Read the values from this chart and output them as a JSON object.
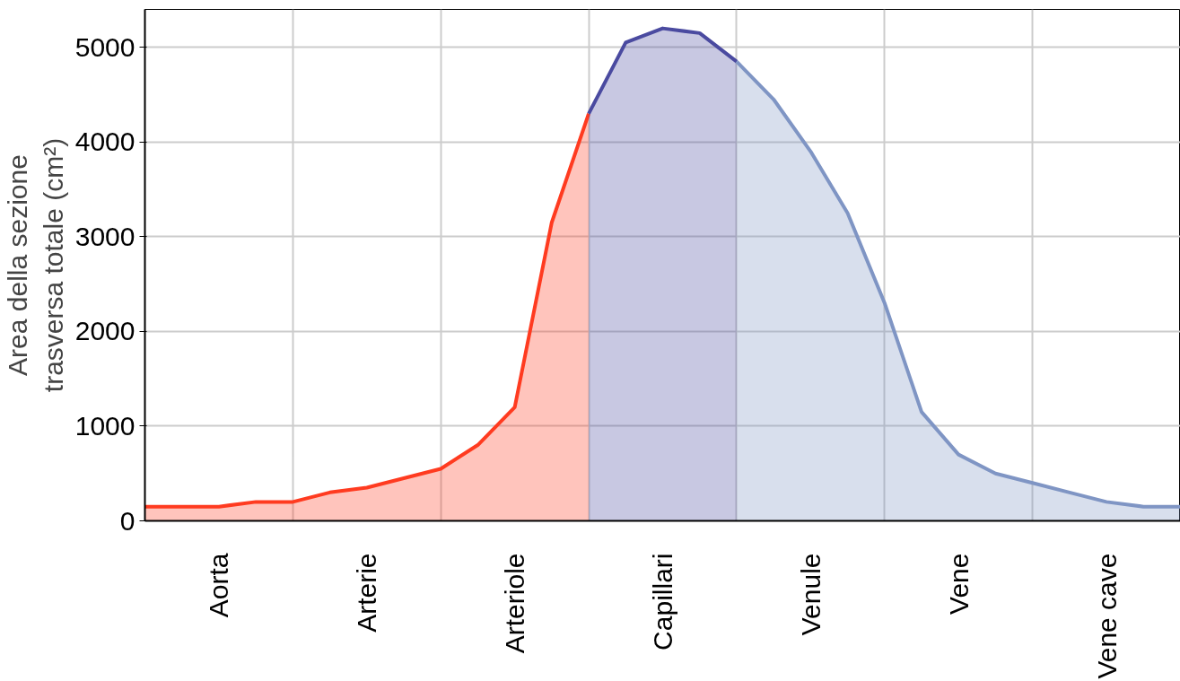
{
  "chart_data": {
    "type": "area",
    "ylabel": "Area della sezione\ntrasversa totale (cm²)",
    "categories": [
      null,
      null,
      "Aorta",
      null,
      null,
      null,
      "Arterie",
      null,
      null,
      null,
      "Arteriole",
      null,
      null,
      null,
      "Capillari",
      null,
      null,
      null,
      "Venule",
      null,
      null,
      null,
      "Vene",
      null,
      null,
      null,
      "Vene cave",
      null,
      null
    ],
    "ylim": [
      0,
      5400
    ],
    "yticks": [
      0,
      1000,
      2000,
      3000,
      4000,
      5000
    ],
    "grid": true,
    "series": [
      {
        "color": "#ff3b20",
        "values": [
          150,
          150,
          150,
          200,
          200,
          300,
          350,
          450,
          550,
          800,
          1200,
          3150,
          4300,
          null,
          null,
          null,
          null,
          null,
          null,
          null,
          null,
          null,
          null,
          null,
          null,
          null,
          null,
          null,
          null
        ]
      },
      {
        "color": "#4a4aa0",
        "values": [
          null,
          null,
          null,
          null,
          null,
          null,
          null,
          null,
          null,
          null,
          null,
          null,
          4300,
          5050,
          5200,
          5150,
          4850,
          null,
          null,
          null,
          null,
          null,
          null,
          null,
          null,
          null,
          null,
          null,
          null
        ]
      },
      {
        "color": "#7f95c4",
        "values": [
          null,
          null,
          null,
          null,
          null,
          null,
          null,
          null,
          null,
          null,
          null,
          null,
          null,
          null,
          null,
          null,
          4850,
          4450,
          3900,
          3250,
          2300,
          1150,
          700,
          500,
          400,
          300,
          200,
          150,
          150
        ]
      }
    ]
  }
}
